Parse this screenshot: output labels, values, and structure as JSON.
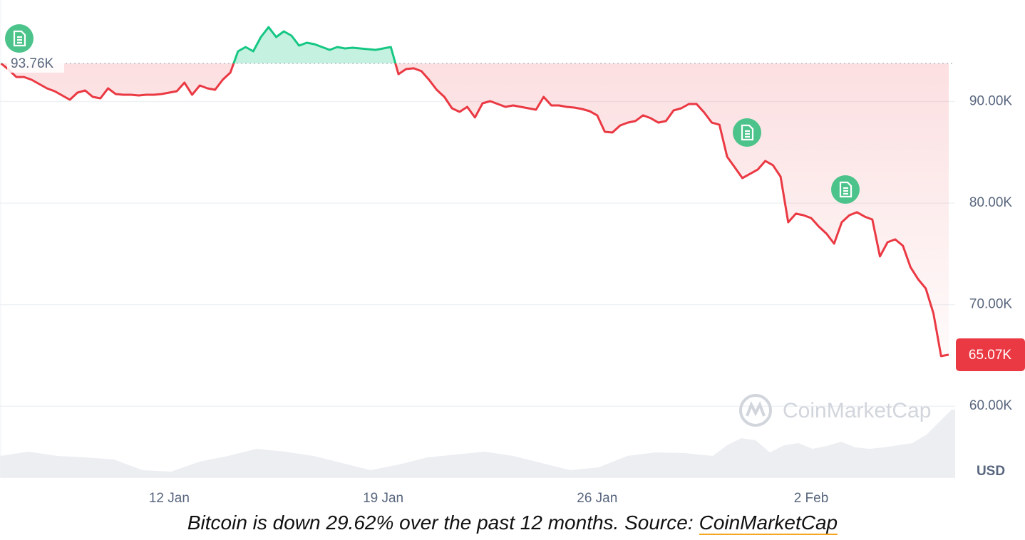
{
  "chart_data": {
    "type": "line",
    "categories": [
      null,
      null,
      null,
      null,
      null,
      null,
      null,
      null,
      null,
      null,
      null,
      null,
      null,
      null,
      null,
      null,
      null,
      null,
      null,
      null,
      null,
      null,
      "12 Jan",
      null,
      null,
      null,
      null,
      null,
      null,
      null,
      null,
      null,
      null,
      null,
      null,
      null,
      null,
      null,
      null,
      null,
      null,
      null,
      null,
      null,
      null,
      null,
      null,
      null,
      null,
      null,
      "19 Jan",
      null,
      null,
      null,
      null,
      null,
      null,
      null,
      null,
      null,
      null,
      null,
      null,
      null,
      null,
      null,
      null,
      null,
      null,
      null,
      null,
      null,
      null,
      null,
      null,
      null,
      null,
      null,
      "26 Jan",
      null,
      null,
      null,
      null,
      null,
      null,
      null,
      null,
      null,
      null,
      null,
      null,
      null,
      null,
      null,
      null,
      null,
      null,
      null,
      null,
      null,
      null,
      null,
      null,
      null,
      null,
      null,
      "2 Feb",
      null,
      null,
      null,
      null,
      null,
      null,
      null,
      null,
      null,
      null,
      null,
      null,
      null,
      null,
      null,
      null,
      null,
      null
    ],
    "values": [
      93760,
      93130,
      92420,
      92420,
      92140,
      91720,
      91300,
      91020,
      90600,
      90180,
      90880,
      91090,
      90460,
      90320,
      91300,
      90740,
      90670,
      90670,
      90600,
      90670,
      90670,
      90740,
      90880,
      91020,
      91860,
      90670,
      91580,
      91300,
      91160,
      92140,
      92850,
      94950,
      95370,
      94950,
      96350,
      97330,
      96350,
      96910,
      96490,
      95510,
      95790,
      95650,
      95370,
      95090,
      95370,
      95230,
      95300,
      95230,
      95160,
      95090,
      95230,
      95370,
      92700,
      93200,
      93270,
      92990,
      92140,
      91160,
      90460,
      89340,
      88990,
      89480,
      88430,
      89830,
      90040,
      89760,
      89480,
      89620,
      89480,
      89340,
      89200,
      90460,
      89620,
      89620,
      89480,
      89410,
      89270,
      89060,
      88640,
      87020,
      86950,
      87650,
      87930,
      88080,
      88640,
      88360,
      87930,
      88080,
      89130,
      89340,
      89760,
      89760,
      88920,
      87930,
      87720,
      84570,
      83520,
      82460,
      82880,
      83300,
      84150,
      83730,
      82600,
      78110,
      78960,
      78810,
      78530,
      77690,
      76990,
      76010,
      78110,
      78810,
      79100,
      78670,
      78390,
      74750,
      76150,
      76430,
      75800,
      73690,
      72500,
      71590,
      69130,
      64930,
      65070
    ],
    "color_above": "#16c784",
    "color_below": "#ea3943",
    "baseline": {
      "value": 93760,
      "label": "93.76K"
    },
    "last_price": {
      "value": 65070,
      "label": "65.07K"
    },
    "ylim": [
      53000,
      100000
    ],
    "yticks": [
      {
        "value": 60000,
        "label": "60.00K"
      },
      {
        "value": 70000,
        "label": "70.00K"
      },
      {
        "value": 80000,
        "label": "80.00K"
      },
      {
        "value": 90000,
        "label": "90.00K"
      }
    ],
    "grid": true,
    "unit_label": "USD",
    "watermark": "CoinMarketCap"
  },
  "caption": {
    "text": "Bitcoin is down 29.62% over the past 12 months. Source:",
    "link": "CoinMarketCap"
  }
}
